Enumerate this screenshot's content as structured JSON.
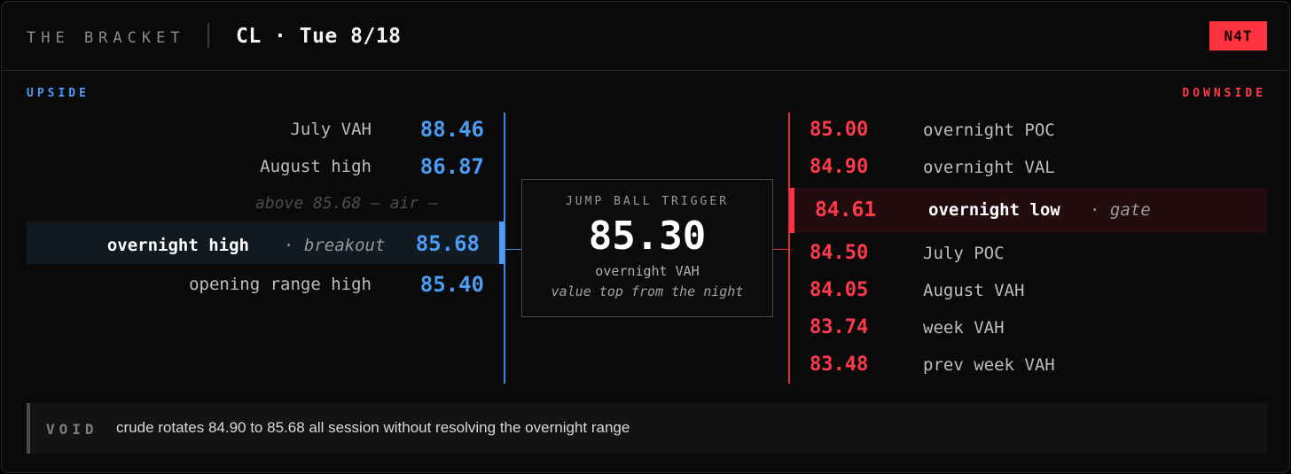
{
  "header": {
    "brand": "THE BRACKET",
    "title": "CL · Tue 8/18",
    "badge": "N4T"
  },
  "upside": {
    "label": "UPSIDE",
    "levels": [
      {
        "label": "July VAH",
        "value": "88.46"
      },
      {
        "label": "August high",
        "value": "86.87"
      }
    ],
    "air_note": "above 85.68 — air —",
    "highlight": {
      "label": "overnight high",
      "tag": "· breakout",
      "value": "85.68"
    },
    "below": [
      {
        "label": "opening range high",
        "value": "85.40"
      }
    ]
  },
  "trigger": {
    "label": "JUMP BALL TRIGGER",
    "value": "85.30",
    "name": "overnight VAH",
    "note": "value top from the night"
  },
  "downside": {
    "label": "DOWNSIDE",
    "above": [
      {
        "value": "85.00",
        "label": "overnight POC"
      },
      {
        "value": "84.90",
        "label": "overnight VAL"
      }
    ],
    "highlight": {
      "value": "84.61",
      "label": "overnight low",
      "tag": "· gate"
    },
    "below": [
      {
        "value": "84.50",
        "label": "July POC"
      },
      {
        "value": "84.05",
        "label": "August VAH"
      },
      {
        "value": "83.74",
        "label": "week VAH"
      },
      {
        "value": "83.48",
        "label": "prev week VAH"
      }
    ]
  },
  "void": {
    "label": "VOID",
    "text": "crude rotates 84.90 to 85.68 all session without resolving the overnight range"
  },
  "colors": {
    "upside": "#4a9cf5",
    "downside": "#ff3a4a",
    "badge": "#ff3340",
    "background": "#0a0a0b"
  }
}
